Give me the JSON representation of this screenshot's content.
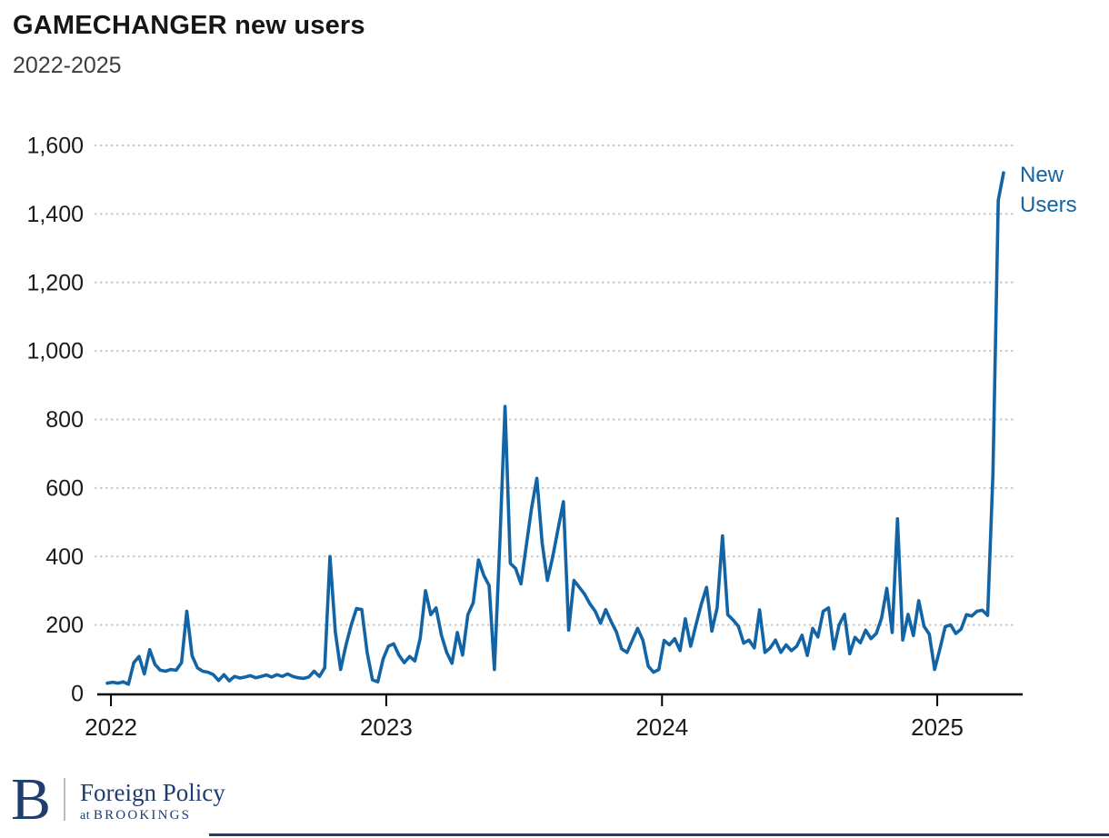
{
  "header": {
    "title": "GAMECHANGER new users",
    "subtitle": "2022-2025"
  },
  "chart_data": {
    "type": "line",
    "title": "GAMECHANGER new users",
    "subtitle": "2022-2025",
    "x_unit": "week",
    "x_start": "2022-01",
    "x_end": "2025-03",
    "ylim": [
      0,
      1600
    ],
    "grid": "dotted-horizontal",
    "legend_position": "right-of-line-end",
    "y_ticks": [
      {
        "value": 0,
        "label": "0"
      },
      {
        "value": 200,
        "label": "200"
      },
      {
        "value": 400,
        "label": "400"
      },
      {
        "value": 600,
        "label": "600"
      },
      {
        "value": 800,
        "label": "800"
      },
      {
        "value": 1000,
        "label": "1,000"
      },
      {
        "value": 1200,
        "label": "1,200"
      },
      {
        "value": 1400,
        "label": "1,400"
      },
      {
        "value": 1600,
        "label": "1,600"
      }
    ],
    "x_ticks": [
      {
        "label": "2022",
        "week": 0.7
      },
      {
        "label": "2023",
        "week": 52.6
      },
      {
        "label": "2024",
        "week": 104.6
      },
      {
        "label": "2025",
        "week": 156.5
      }
    ],
    "series": [
      {
        "name": "New Users",
        "color": "#1264a5",
        "values": [
          30,
          33,
          30,
          34,
          27,
          90,
          108,
          57,
          128,
          85,
          68,
          65,
          70,
          68,
          90,
          240,
          110,
          75,
          65,
          62,
          55,
          38,
          55,
          37,
          50,
          45,
          48,
          52,
          46,
          50,
          54,
          48,
          55,
          50,
          57,
          50,
          46,
          44,
          48,
          65,
          50,
          75,
          400,
          180,
          70,
          140,
          200,
          248,
          245,
          120,
          40,
          34,
          100,
          138,
          145,
          112,
          90,
          108,
          95,
          160,
          300,
          230,
          250,
          170,
          120,
          88,
          178,
          112,
          230,
          265,
          390,
          345,
          315,
          70,
          430,
          838,
          380,
          365,
          320,
          430,
          540,
          628,
          440,
          330,
          400,
          480,
          560,
          185,
          330,
          310,
          290,
          262,
          240,
          205,
          245,
          210,
          180,
          130,
          120,
          155,
          190,
          155,
          80,
          62,
          70,
          155,
          142,
          160,
          125,
          218,
          138,
          200,
          260,
          310,
          182,
          250,
          460,
          230,
          215,
          196,
          147,
          156,
          133,
          244,
          120,
          133,
          156,
          120,
          142,
          125,
          138,
          170,
          111,
          190,
          165,
          240,
          250,
          130,
          200,
          231,
          116,
          164,
          148,
          185,
          160,
          175,
          220,
          307,
          178,
          510,
          156,
          231,
          169,
          271,
          196,
          173,
          70,
          130,
          195,
          200,
          175,
          188,
          230,
          226,
          240,
          243,
          228,
          640,
          1440,
          1520
        ]
      }
    ]
  },
  "footer": {
    "logo_letter": "B",
    "brand": "Foreign Policy",
    "brand_sub_prefix": "at",
    "brand_sub": "BROOKINGS"
  },
  "colors": {
    "line": "#1264a5",
    "navy": "#1f3d6d",
    "grid": "#c9c9c9",
    "axis": "#000000",
    "tick_text": "#1a1a1a",
    "title_text": "#161616",
    "subtitle_text": "#3d3d3d"
  }
}
